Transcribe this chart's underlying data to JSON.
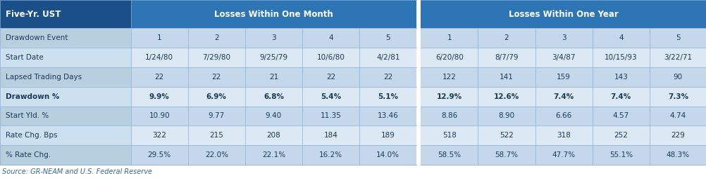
{
  "title_col": "Five-Yr. UST",
  "header1": "Losses Within One Month",
  "header2": "Losses Within One Year",
  "dark_blue": "#1b4f8a",
  "mid_blue": "#2e75b6",
  "row_odd_bg": "#c5d8eb",
  "row_even_bg": "#dce9f5",
  "label_odd_bg": "#b8cfe0",
  "label_even_bg": "#cde0f0",
  "header_text_color": "#ffffff",
  "body_text_color": "#1a3a5c",
  "line_color": "#8aafd4",
  "source_text_color": "#3a6a9a",
  "source_text": "Source: GR-NEAM and U.S. Federal Reserve",
  "rows": [
    {
      "label": "Drawdown Event",
      "bold": false,
      "month_vals": [
        "1",
        "2",
        "3",
        "4",
        "5"
      ],
      "year_vals": [
        "1",
        "2",
        "3",
        "4",
        "5"
      ]
    },
    {
      "label": "Start Date",
      "bold": false,
      "month_vals": [
        "1/24/80",
        "7/29/80",
        "9/25/79",
        "10/6/80",
        "4/2/81"
      ],
      "year_vals": [
        "6/20/80",
        "8/7/79",
        "3/4/87",
        "10/15/93",
        "3/22/71"
      ]
    },
    {
      "label": "Lapsed Trading Days",
      "bold": false,
      "month_vals": [
        "22",
        "22",
        "21",
        "22",
        "22"
      ],
      "year_vals": [
        "122",
        "141",
        "159",
        "143",
        "90"
      ]
    },
    {
      "label": "Drawdown %",
      "bold": true,
      "month_vals": [
        "9.9%",
        "6.9%",
        "6.8%",
        "5.4%",
        "5.1%"
      ],
      "year_vals": [
        "12.9%",
        "12.6%",
        "7.4%",
        "7.4%",
        "7.3%"
      ]
    },
    {
      "label": "Start Yld. %",
      "bold": false,
      "month_vals": [
        "10.90",
        "9.77",
        "9.40",
        "11.35",
        "13.46"
      ],
      "year_vals": [
        "8.86",
        "8.90",
        "6.66",
        "4.57",
        "4.74"
      ]
    },
    {
      "label": "Rate Chg. Bps",
      "bold": false,
      "month_vals": [
        "322",
        "215",
        "208",
        "184",
        "189"
      ],
      "year_vals": [
        "518",
        "522",
        "318",
        "252",
        "229"
      ]
    },
    {
      "label": "% Rate Chg.",
      "bold": false,
      "month_vals": [
        "29.5%",
        "22.0%",
        "22.1%",
        "16.2%",
        "14.0%"
      ],
      "year_vals": [
        "58.5%",
        "58.7%",
        "47.7%",
        "55.1%",
        "48.3%"
      ]
    }
  ]
}
